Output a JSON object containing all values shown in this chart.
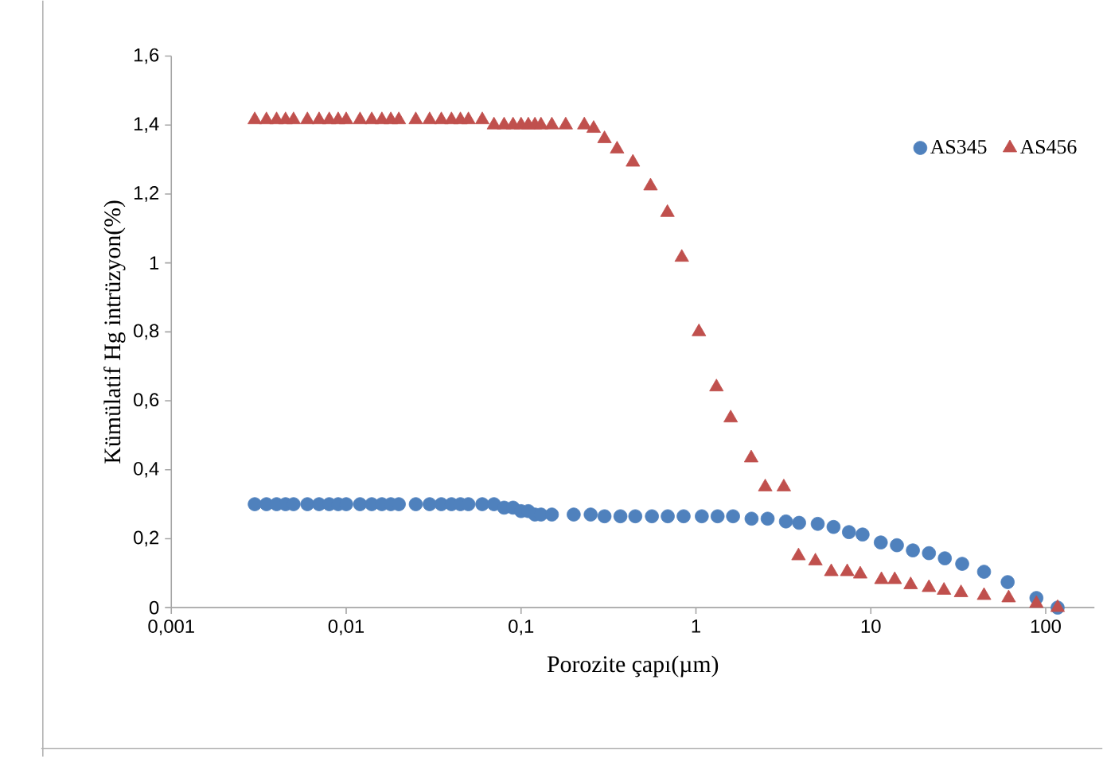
{
  "chart_data": {
    "type": "scatter",
    "xlabel": "Porozite çapı(µm)",
    "ylabel": "Kümülatif Hg intrüzyon(%)",
    "log": "x",
    "xlim": [
      0.001,
      190
    ],
    "ylim": [
      0,
      1.6
    ],
    "grid": false,
    "legend": "top right",
    "xticks": [
      {
        "value": 0.001,
        "label": "0,001"
      },
      {
        "value": 0.01,
        "label": "0,01"
      },
      {
        "value": 0.1,
        "label": "0,1"
      },
      1,
      10,
      100
    ],
    "yticks": [
      0,
      {
        "value": 0.2,
        "label": "0,2"
      },
      {
        "value": 0.4,
        "label": "0,4"
      },
      {
        "value": 0.6,
        "label": "0,6"
      },
      {
        "value": 0.8,
        "label": "0,8"
      },
      1,
      {
        "value": 1.2,
        "label": "1,2"
      },
      {
        "value": 1.4,
        "label": "1,4"
      },
      {
        "value": 1.6,
        "label": "1,6"
      }
    ],
    "series": [
      {
        "name": "AS345",
        "color": "#4f81bd",
        "marker": "circle",
        "x": [
          0.003,
          0.0035,
          0.004,
          0.0045,
          0.005,
          0.006,
          0.007,
          0.008,
          0.009,
          0.01,
          0.012,
          0.014,
          0.016,
          0.018,
          0.02,
          0.025,
          0.03,
          0.035,
          0.04,
          0.045,
          0.05,
          0.06,
          0.07,
          0.08,
          0.09,
          0.1,
          0.11,
          0.12,
          0.13,
          0.15,
          0.2,
          0.25,
          0.3,
          0.37,
          0.45,
          0.56,
          0.69,
          0.85,
          1.08,
          1.33,
          1.63,
          2.08,
          2.57,
          3.27,
          3.89,
          4.97,
          6.12,
          7.5,
          8.97,
          11.4,
          14.1,
          17.4,
          21.5,
          26.5,
          33.3,
          44.4,
          60.6,
          88.5,
          117
        ],
        "values": [
          0.3,
          0.3,
          0.3,
          0.3,
          0.3,
          0.3,
          0.3,
          0.3,
          0.3,
          0.3,
          0.3,
          0.3,
          0.3,
          0.3,
          0.3,
          0.3,
          0.3,
          0.3,
          0.3,
          0.3,
          0.3,
          0.3,
          0.3,
          0.29,
          0.29,
          0.28,
          0.28,
          0.27,
          0.27,
          0.27,
          0.27,
          0.27,
          0.265,
          0.265,
          0.265,
          0.265,
          0.265,
          0.265,
          0.265,
          0.265,
          0.265,
          0.258,
          0.258,
          0.25,
          0.246,
          0.243,
          0.234,
          0.219,
          0.212,
          0.189,
          0.181,
          0.166,
          0.158,
          0.143,
          0.127,
          0.104,
          0.074,
          0.028,
          0
        ]
      },
      {
        "name": "AS456",
        "color": "#c0504d",
        "marker": "triangle",
        "x": [
          0.003,
          0.0035,
          0.004,
          0.0045,
          0.005,
          0.006,
          0.007,
          0.008,
          0.009,
          0.01,
          0.012,
          0.014,
          0.016,
          0.018,
          0.02,
          0.025,
          0.03,
          0.035,
          0.04,
          0.045,
          0.05,
          0.06,
          0.07,
          0.08,
          0.09,
          0.1,
          0.11,
          0.12,
          0.13,
          0.15,
          0.18,
          0.23,
          0.26,
          0.3,
          0.354,
          0.436,
          0.55,
          0.687,
          0.83,
          1.04,
          1.31,
          1.58,
          2.07,
          2.49,
          3.18,
          3.86,
          4.82,
          5.94,
          7.33,
          8.7,
          11.5,
          13.7,
          16.9,
          21.5,
          26.2,
          32.8,
          44.4,
          61.4,
          88.5,
          117
        ],
        "values": [
          1.415,
          1.415,
          1.415,
          1.415,
          1.415,
          1.415,
          1.415,
          1.415,
          1.415,
          1.415,
          1.415,
          1.415,
          1.415,
          1.415,
          1.415,
          1.415,
          1.415,
          1.415,
          1.415,
          1.415,
          1.415,
          1.415,
          1.4,
          1.4,
          1.4,
          1.4,
          1.4,
          1.4,
          1.4,
          1.4,
          1.4,
          1.4,
          1.39,
          1.36,
          1.33,
          1.292,
          1.223,
          1.146,
          1.016,
          0.8,
          0.64,
          0.55,
          0.434,
          0.35,
          0.35,
          0.15,
          0.135,
          0.104,
          0.104,
          0.097,
          0.081,
          0.081,
          0.066,
          0.058,
          0.05,
          0.043,
          0.035,
          0.028,
          0.012,
          0
        ]
      }
    ]
  }
}
